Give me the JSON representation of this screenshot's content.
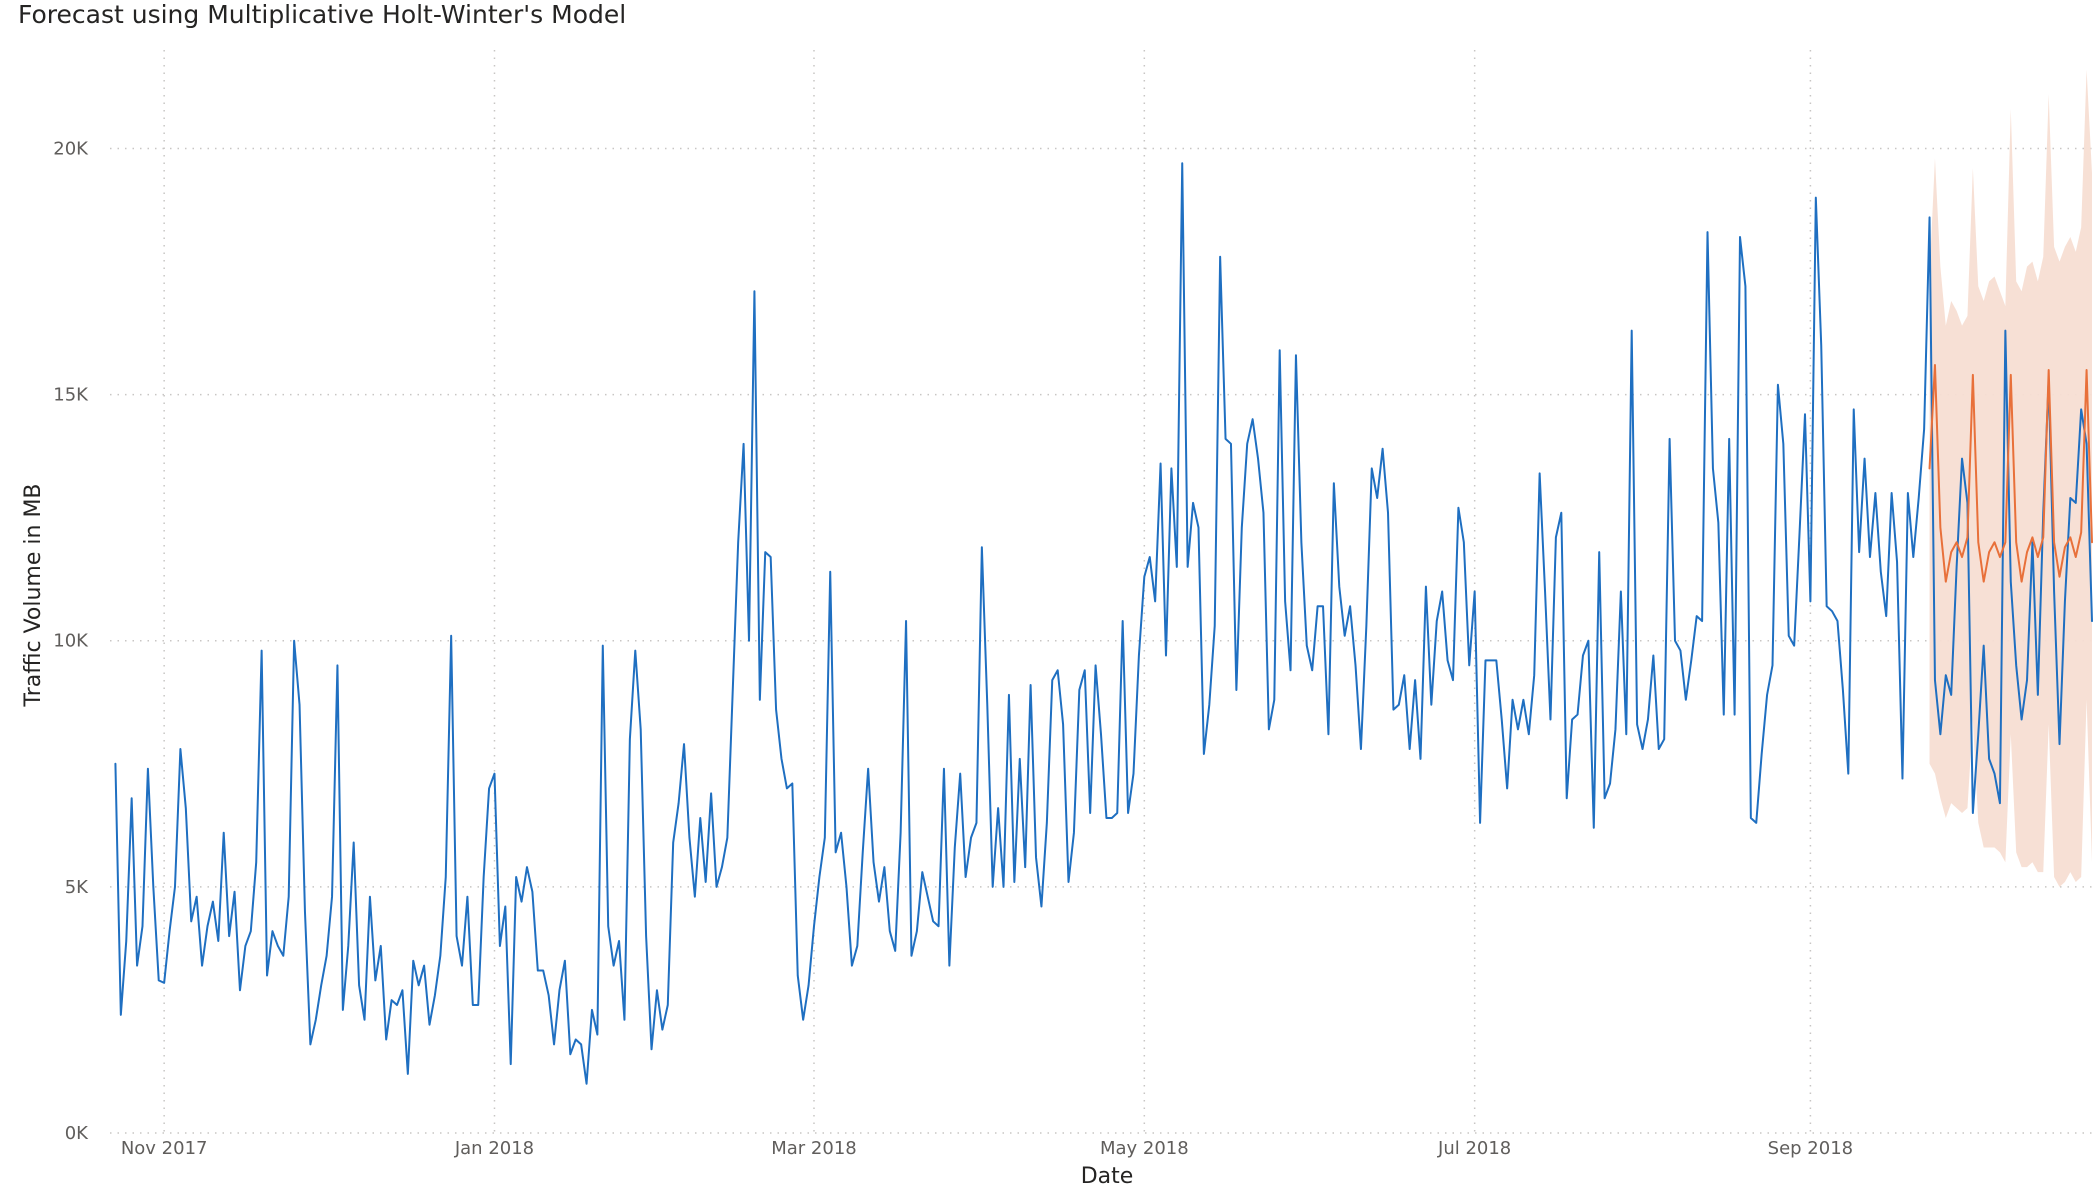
{
  "chart_data": {
    "type": "line",
    "title": "Forecast using Multiplicative Holt-Winter's Model",
    "xlabel": "Date",
    "ylabel": "Traffic Volume in MB",
    "x_ticks": [
      {
        "date": "2017-11-01",
        "label": "Nov 2017"
      },
      {
        "date": "2018-01-01",
        "label": "Jan 2018"
      },
      {
        "date": "2018-03-01",
        "label": "Mar 2018"
      },
      {
        "date": "2018-05-01",
        "label": "May 2018"
      },
      {
        "date": "2018-07-01",
        "label": "Jul 2018"
      },
      {
        "date": "2018-09-01",
        "label": "Sep 2018"
      }
    ],
    "y_ticks": [
      {
        "value": 0,
        "label": "0K"
      },
      {
        "value": 5000,
        "label": "5K"
      },
      {
        "value": 10000,
        "label": "10K"
      },
      {
        "value": 15000,
        "label": "15K"
      },
      {
        "value": 20000,
        "label": "20K"
      }
    ],
    "ylim": [
      0,
      22000
    ],
    "xlim": [
      "2017-10-22",
      "2018-10-23"
    ],
    "grid": true,
    "colors": {
      "actual": "#1F6FC1",
      "forecast": "#E8703A",
      "band": "#F7DED3",
      "grid": "#C8C6C4"
    },
    "series": [
      {
        "role": "actual",
        "color": "#1F6FC1",
        "start_date": "2017-10-23",
        "values": [
          7500,
          2400,
          3900,
          6800,
          3400,
          4200,
          7400,
          5000,
          3100,
          3050,
          4100,
          5000,
          7800,
          6600,
          4300,
          4800,
          3400,
          4200,
          4700,
          3900,
          6100,
          4000,
          4900,
          2900,
          3800,
          4100,
          5500,
          9800,
          3200,
          4100,
          3800,
          3600,
          4800,
          10000,
          8700,
          4500,
          1800,
          2300,
          3000,
          3600,
          4800,
          9500,
          2500,
          3800,
          5900,
          3000,
          2300,
          4800,
          3100,
          3800,
          1900,
          2700,
          2600,
          2900,
          1200,
          3500,
          3000,
          3400,
          2200,
          2800,
          3600,
          5200,
          10100,
          4000,
          3400,
          4800,
          2600,
          2600,
          5200,
          7000,
          7300,
          3800,
          4600,
          1400,
          5200,
          4700,
          5400,
          4900,
          3300,
          3300,
          2800,
          1800,
          2900,
          3500,
          1600,
          1900,
          1800,
          1000,
          2500,
          2000,
          9900,
          4200,
          3400,
          3900,
          2300,
          8000,
          9800,
          8200,
          4000,
          1700,
          2900,
          2100,
          2600,
          5900,
          6700,
          7900,
          6000,
          4800,
          6400,
          5100,
          6900,
          5000,
          5400,
          6000,
          9000,
          12000,
          14000,
          10000,
          17100,
          8800,
          11800,
          11700,
          8600,
          7600,
          7000,
          7100,
          3200,
          2300,
          3000,
          4200,
          5200,
          6000,
          11400,
          5700,
          6100,
          5000,
          3400,
          3800,
          5700,
          7400,
          5500,
          4700,
          5400,
          4100,
          3700,
          6100,
          10400,
          3600,
          4100,
          5300,
          4800,
          4300,
          4200,
          7400,
          3400,
          5800,
          7300,
          5200,
          6000,
          6300,
          11900,
          8700,
          5000,
          6600,
          5000,
          8900,
          5100,
          7600,
          5400,
          9100,
          5600,
          4600,
          6300,
          9200,
          9400,
          8300,
          5100,
          6100,
          9000,
          9400,
          6500,
          9500,
          8100,
          6400,
          6400,
          6500,
          10400,
          6500,
          7300,
          9700,
          11300,
          11700,
          10800,
          13600,
          9700,
          13500,
          11500,
          19700,
          11500,
          12800,
          12300,
          7700,
          8700,
          10300,
          17800,
          14100,
          14000,
          9000,
          12300,
          14000,
          14500,
          13700,
          12600,
          8200,
          8800,
          15900,
          10800,
          9400,
          15800,
          12000,
          9900,
          9400,
          10700,
          10700,
          8100,
          13200,
          11100,
          10100,
          10700,
          9500,
          7800,
          10300,
          13500,
          12900,
          13900,
          12600,
          8600,
          8700,
          9300,
          7800,
          9200,
          7600,
          11100,
          8700,
          10400,
          11000,
          9600,
          9200,
          12700,
          12000,
          9500,
          11000,
          6300,
          9600,
          9600,
          9600,
          8400,
          7000,
          8800,
          8200,
          8800,
          8100,
          9300,
          13400,
          11000,
          8400,
          12100,
          12600,
          6800,
          8400,
          8500,
          9700,
          10000,
          6200,
          11800,
          6800,
          7100,
          8200,
          11000,
          8100,
          16300,
          8300,
          7800,
          8400,
          9700,
          7800,
          8000,
          14100,
          10000,
          9800,
          8800,
          9600,
          10500,
          10400,
          18300,
          13500,
          12400,
          8500,
          14100,
          8500,
          18200,
          17200,
          6400,
          6300,
          7700,
          8900,
          9500,
          15200,
          14000,
          10100,
          9900,
          12200,
          14600,
          10800,
          19000,
          16000,
          10700,
          10600,
          10400,
          9000,
          7300,
          14700,
          11800,
          13700,
          11700,
          13000,
          11400,
          10500,
          13000,
          11600,
          7200,
          13000,
          11700,
          12900,
          14300,
          18600,
          9200,
          8100,
          9300,
          8900,
          11500,
          13700,
          12800,
          6500,
          8100,
          9900,
          7600,
          7300,
          6700,
          16300,
          11200,
          9500,
          8400,
          9200,
          12000,
          8900,
          12600,
          15300,
          11000,
          7900,
          10800,
          12900,
          12800,
          14700,
          14000,
          10400
        ]
      },
      {
        "role": "forecast",
        "color": "#E8703A",
        "start_date": "2018-09-23",
        "values": [
          13500,
          15600,
          12300,
          11200,
          11800,
          12000,
          11700,
          12100,
          15400,
          12000,
          11200,
          11800,
          12000,
          11700,
          12000,
          15400,
          12000,
          11200,
          11800,
          12100,
          11700,
          12100,
          15500,
          12000,
          11300,
          11900,
          12100,
          11700,
          12200,
          15500,
          12000
        ],
        "lower": [
          7500,
          7300,
          6800,
          6400,
          6700,
          6600,
          6500,
          6600,
          8400,
          6300,
          5800,
          5800,
          5800,
          5700,
          5500,
          8100,
          5700,
          5400,
          5400,
          5500,
          5300,
          5300,
          8300,
          5200,
          5000,
          5100,
          5300,
          5100,
          5200,
          8800,
          5500
        ],
        "upper": [
          17400,
          19800,
          17600,
          16400,
          16900,
          16700,
          16400,
          16600,
          19600,
          17200,
          16900,
          17300,
          17400,
          17100,
          16800,
          20800,
          17300,
          17100,
          17600,
          17700,
          17300,
          17800,
          21100,
          18000,
          17700,
          18000,
          18200,
          17900,
          18400,
          21600,
          19500
        ]
      }
    ]
  }
}
